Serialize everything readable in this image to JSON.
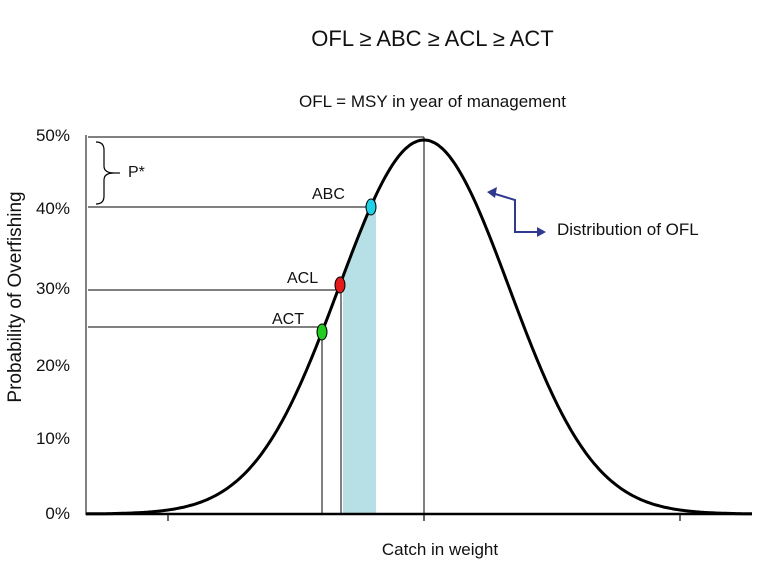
{
  "title": "OFL ≥ ABC ≥ ACL ≥ ACT",
  "subtitle": "OFL = MSY in year of management",
  "xlabel": "Catch in weight",
  "ylabel": "Probability of Overfishing",
  "yticks": [
    "50%",
    "40%",
    "30%",
    "20%",
    "10%",
    "0%"
  ],
  "points": {
    "abc": {
      "label": "ABC",
      "probability": 40,
      "color": "#1fd0e6"
    },
    "acl": {
      "label": "ACL",
      "probability": 30,
      "color": "#e21b1b"
    },
    "act": {
      "label": "ACT",
      "probability": 25,
      "color": "#22cc22"
    }
  },
  "pstar_label": "P*",
  "distribution_label": "Distribution of OFL",
  "colors": {
    "shade": "#b7e0e6",
    "arrow": "#2f3a8f",
    "curve": "#000000"
  }
}
